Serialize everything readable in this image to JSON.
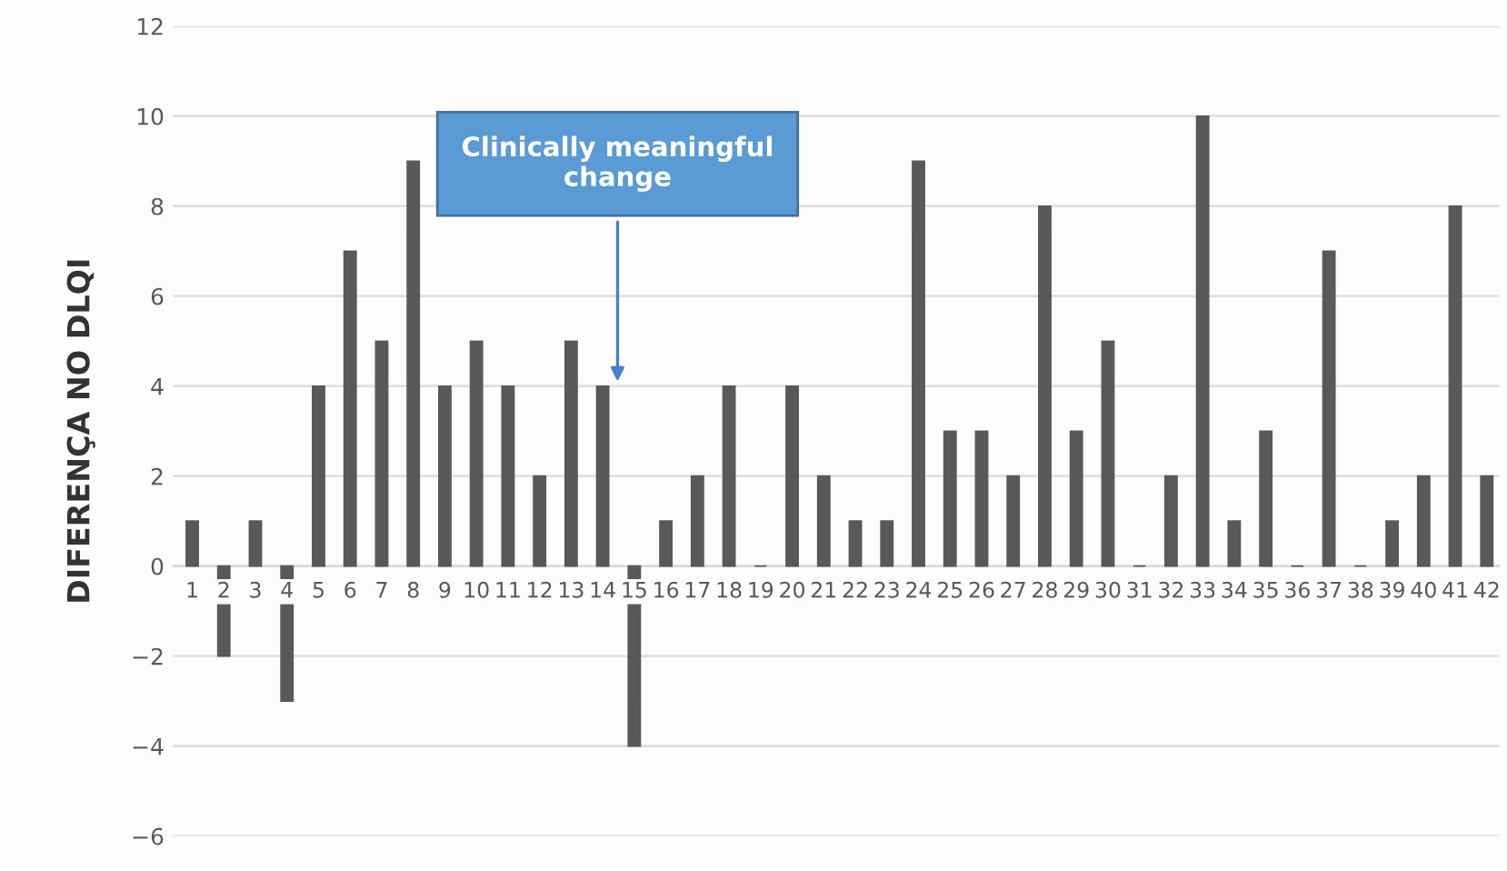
{
  "chart_data": {
    "type": "bar",
    "ylabel": "DIFERENÇA NO DLQI",
    "categories": [
      "1",
      "2",
      "3",
      "4",
      "5",
      "6",
      "7",
      "8",
      "9",
      "10",
      "11",
      "12",
      "13",
      "14",
      "15",
      "16",
      "17",
      "18",
      "19",
      "20",
      "21",
      "22",
      "23",
      "24",
      "25",
      "26",
      "27",
      "28",
      "29",
      "30",
      "31",
      "32",
      "33",
      "34",
      "35",
      "36",
      "37",
      "38",
      "39",
      "40",
      "41",
      "42"
    ],
    "series": [
      {
        "color": "#595959",
        "values": [
          1,
          -2,
          1,
          -3,
          4,
          7,
          5,
          9,
          4,
          5,
          4,
          2,
          5,
          4,
          -4,
          1,
          2,
          4,
          0,
          4,
          2,
          1,
          1,
          9,
          3,
          3,
          2,
          8,
          3,
          5,
          0,
          2,
          10,
          1,
          3,
          0,
          7,
          0,
          1,
          2,
          8,
          2
        ]
      }
    ],
    "ylim": [
      -6,
      12
    ],
    "yticks": [
      {
        "value": -6,
        "label": "−6"
      },
      {
        "value": -4,
        "label": "−4"
      },
      {
        "value": -2,
        "label": "−2"
      },
      0,
      2,
      4,
      6,
      8,
      10,
      12
    ],
    "grid": "y",
    "annotations": [
      "Clinically meaningful\nchange"
    ]
  }
}
